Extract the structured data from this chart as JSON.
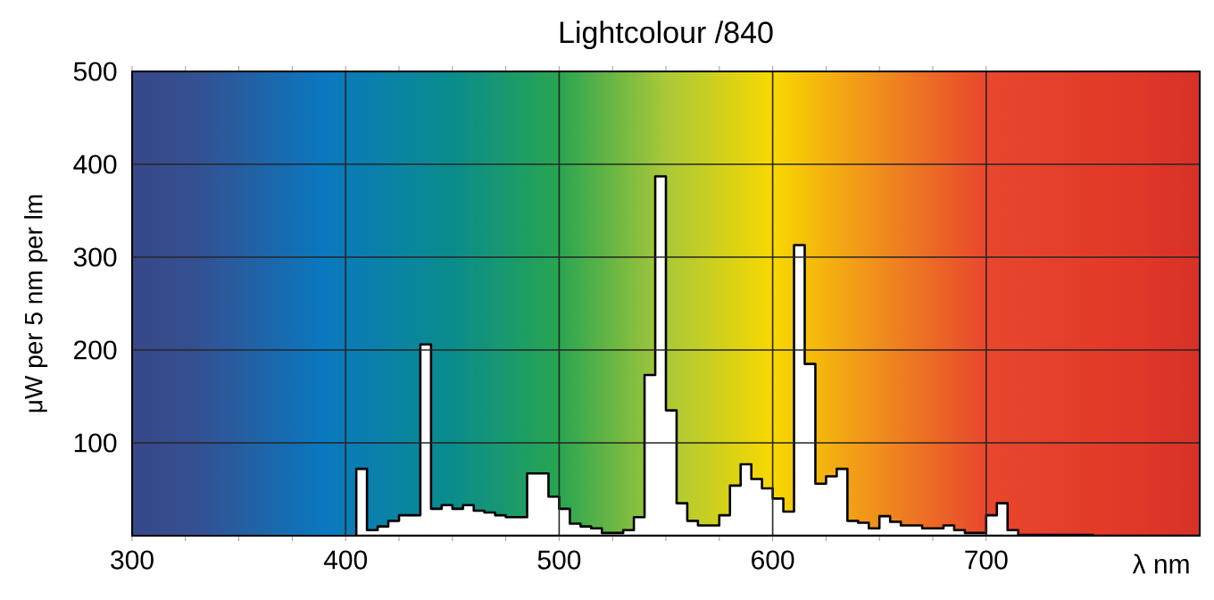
{
  "chart_data": {
    "type": "histogram",
    "title": "Lightcolour /840",
    "xlabel": "λ nm",
    "ylabel": "μW per 5 nm per lm",
    "bins": [
      405,
      410,
      415,
      420,
      425,
      430,
      435,
      440,
      445,
      450,
      455,
      460,
      465,
      470,
      475,
      480,
      485,
      490,
      495,
      500,
      505,
      510,
      515,
      520,
      525,
      530,
      535,
      540,
      545,
      550,
      555,
      560,
      565,
      570,
      575,
      580,
      585,
      590,
      595,
      600,
      605,
      610,
      615,
      620,
      625,
      630,
      635,
      640,
      645,
      650,
      655,
      660,
      665,
      670,
      675,
      680,
      685,
      690,
      695,
      700,
      705,
      710,
      715,
      720,
      725,
      730,
      735,
      740,
      745,
      750,
      755,
      760,
      765,
      770,
      775,
      780,
      785,
      790,
      795,
      800
    ],
    "values": [
      72,
      6,
      10,
      16,
      22,
      22,
      206,
      29,
      33,
      29,
      33,
      27,
      25,
      22,
      20,
      20,
      67,
      67,
      42,
      29,
      13,
      10,
      8,
      3,
      3,
      6,
      20,
      173,
      387,
      135,
      35,
      16,
      11,
      11,
      22,
      54,
      77,
      61,
      51,
      40,
      26,
      313,
      185,
      56,
      64,
      72,
      16,
      14,
      8,
      21,
      15,
      11,
      11,
      8,
      8,
      11,
      6,
      3,
      3,
      22,
      35,
      6,
      1,
      1,
      1,
      1,
      1,
      1,
      1,
      0,
      0,
      0,
      0,
      0,
      0,
      0,
      0,
      0,
      0
    ],
    "color": "#ffffff",
    "xlim": [
      300,
      800
    ],
    "xticks": [
      300,
      400,
      500,
      600,
      700
    ],
    "ylim": [
      0,
      500
    ],
    "yticks": [
      100,
      200,
      300,
      400,
      500
    ],
    "grid": true
  }
}
